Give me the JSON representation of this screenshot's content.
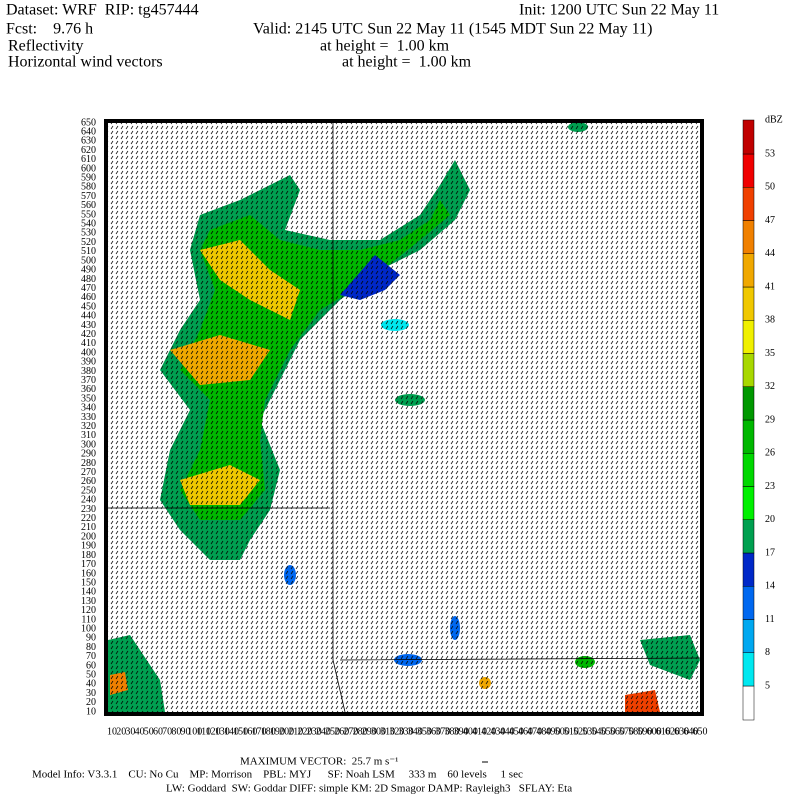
{
  "header": {
    "dataset": "Dataset: WRF  RIP: tg457444",
    "init": "Init: 1200 UTC Sun 22 May 11",
    "fcst": "Fcst:    9.76 h",
    "valid": "Valid: 2145 UTC Sun 22 May 11 (1545 MDT Sun 22 May 11)",
    "field1": "Reflectivity",
    "field1_level": "at height =  1.00 km",
    "field2": "Horizontal wind vectors",
    "field2_level": "at height =  1.00 km"
  },
  "axes": {
    "yticks": [
      10,
      20,
      30,
      40,
      50,
      60,
      70,
      80,
      90,
      100,
      110,
      120,
      130,
      140,
      150,
      160,
      170,
      180,
      190,
      200,
      210,
      220,
      230,
      240,
      250,
      260,
      270,
      280,
      290,
      300,
      310,
      320,
      330,
      340,
      350,
      360,
      370,
      380,
      390,
      400,
      410,
      420,
      430,
      440,
      450,
      460,
      470,
      480,
      490,
      500,
      510,
      520,
      530,
      540,
      550,
      560,
      570,
      580,
      590,
      600,
      610,
      620,
      630,
      640,
      650
    ],
    "xticks": [
      10,
      20,
      30,
      40,
      50,
      60,
      70,
      80,
      90,
      100,
      110,
      120,
      130,
      140,
      150,
      160,
      170,
      180,
      190,
      200,
      210,
      220,
      230,
      240,
      250,
      260,
      270,
      280,
      290,
      300,
      310,
      320,
      330,
      340,
      350,
      360,
      370,
      380,
      390,
      400,
      410,
      420,
      430,
      440,
      450,
      460,
      470,
      480,
      490,
      500,
      510,
      520,
      530,
      540,
      550,
      560,
      570,
      580,
      590,
      600,
      610,
      620,
      630,
      640,
      650
    ]
  },
  "colorbar": {
    "unit": "dBZ",
    "levels": [
      5,
      8,
      11,
      14,
      17,
      20,
      23,
      26,
      29,
      32,
      35,
      38,
      41,
      44,
      47,
      50,
      53
    ],
    "colors": [
      "#ffffff",
      "#00e8f0",
      "#00a8f0",
      "#0068f0",
      "#0028c8",
      "#00a050",
      "#00f000",
      "#00d800",
      "#00b800",
      "#009800",
      "#a8d800",
      "#f0f000",
      "#f0c800",
      "#f0a800",
      "#f08000",
      "#f04000",
      "#f00000",
      "#c00000"
    ]
  },
  "footer": {
    "max_vector": "MAXIMUM VECTOR:  25.7 m s⁻¹",
    "model_info": "Model Info: V3.3.1    CU: No Cu    MP: Morrison    PBL: MYJ      SF: Noah LSM     333 m    60 levels     1 sec",
    "model_info2": "LW: Goddard  SW: Goddar DIFF: simple KM: 2D Smagor DAMP: Rayleigh3   SFLAY: Eta"
  }
}
